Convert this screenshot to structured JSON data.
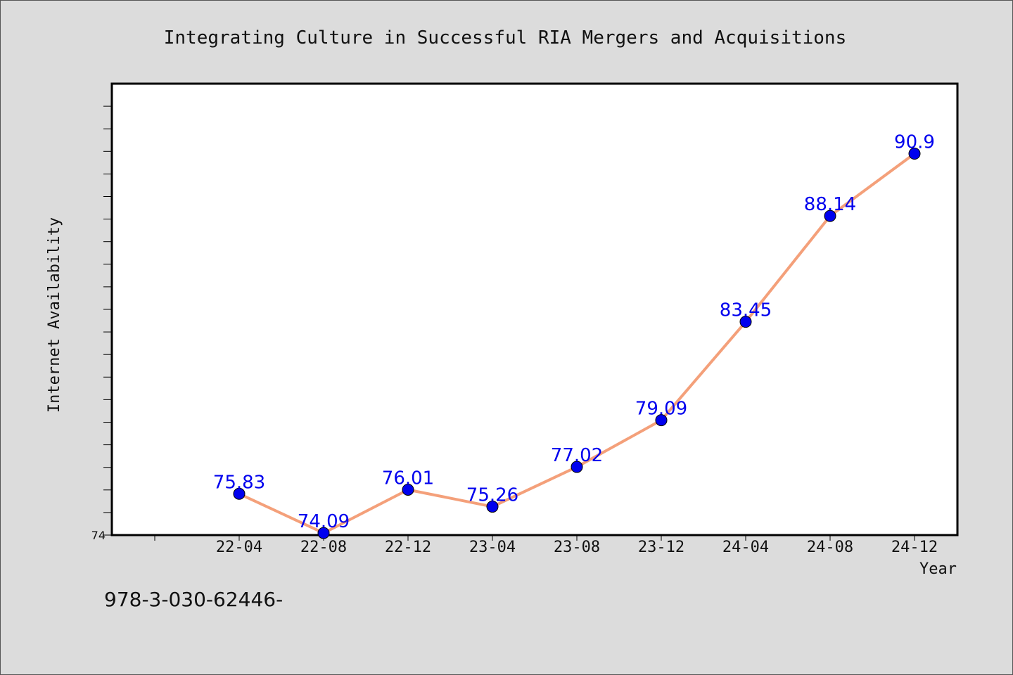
{
  "chart_data": {
    "type": "line",
    "title": "Integrating Culture in Successful RIA Mergers and Acquisitions",
    "xlabel": "Year",
    "ylabel": "Internet Availability",
    "categories": [
      "22-04",
      "22-08",
      "22-12",
      "23-04",
      "23-08",
      "23-12",
      "24-04",
      "24-08",
      "24-12"
    ],
    "series": [
      {
        "values": [
          75.83,
          74.09,
          76.01,
          75.26,
          77.02,
          79.09,
          83.45,
          88.14,
          90.9
        ],
        "labels": [
          "75.83",
          "74.09",
          "76.01",
          "75.26",
          "77.02",
          "79.09",
          "83.45",
          "88.14",
          "90.9"
        ]
      }
    ],
    "ylim": [
      74,
      94
    ],
    "yticks": [
      "74"
    ],
    "grid": false,
    "colors": {
      "line": "#f4a07a",
      "marker": "#0000ee",
      "label": "#0000ee"
    }
  },
  "footnote": "978-3-030-62446-"
}
